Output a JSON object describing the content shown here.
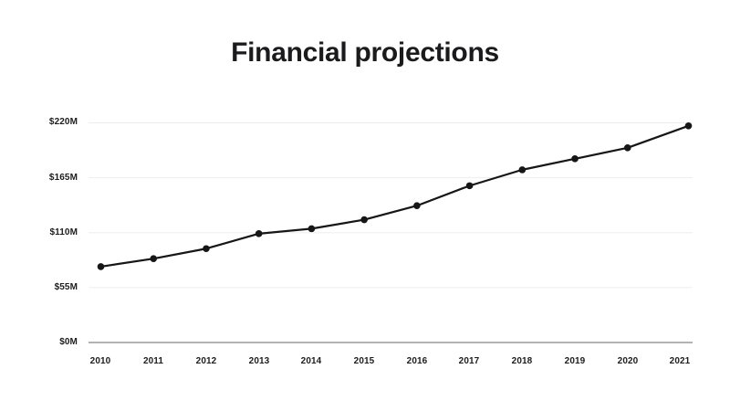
{
  "title": "Financial projections",
  "chart_data": {
    "type": "line",
    "title": "Financial projections",
    "categories": [
      "2010",
      "2011",
      "2012",
      "2013",
      "2014",
      "2015",
      "2016",
      "2017",
      "2018",
      "2019",
      "2020",
      "2021"
    ],
    "values": [
      76,
      84,
      94,
      109,
      114,
      123,
      137,
      157,
      173,
      184,
      195,
      217
    ],
    "value_unit_format": "$ millions, labels shown as $NM",
    "y_tick_labels": [
      "$220M",
      "$165M",
      "$110M",
      "$55M",
      "$0M"
    ],
    "y_tick_values": [
      220,
      165,
      110,
      55,
      0
    ],
    "ylim": [
      0,
      220
    ],
    "xlabel": "",
    "ylabel": "",
    "grid": true,
    "legend": "none",
    "colors": {
      "line": "#161616",
      "point": "#161616",
      "gridline": "#ededed",
      "baseline": "#b3b3b3",
      "label_text": "#1d1d1f",
      "title_text": "#1b1b1e",
      "background": "#ffffff"
    }
  }
}
